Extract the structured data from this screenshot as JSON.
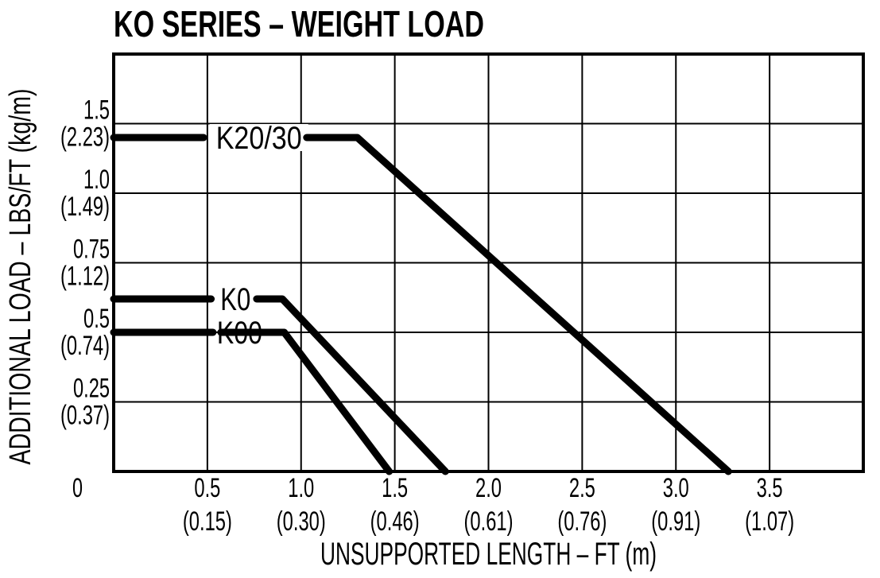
{
  "header": {
    "title": "KO SERIES – WEIGHT LOAD"
  },
  "colors": {
    "ink": "#000000",
    "background": "#ffffff"
  },
  "chart_data": {
    "type": "line",
    "title": "KO SERIES – WEIGHT LOAD",
    "xlabel": "UNSUPPORTED LENGTH – FT (m)",
    "ylabel": "ADDITIONAL LOAD – LBS/FT (kg/m)",
    "xlim": [
      0,
      4
    ],
    "x_gridline_step_ft": 0.5,
    "grid": true,
    "legend_position": "inline-labels-on-lines",
    "y_axis_note": "gridlines evenly spaced at the labeled values (non-linear value axis); metric equivalents in parentheses",
    "origin_label": "0",
    "x_ticks": [
      {
        "ft": "0.5",
        "m": "(0.15)",
        "value": 0.5
      },
      {
        "ft": "1.0",
        "m": "(0.30)",
        "value": 1.0
      },
      {
        "ft": "1.5",
        "m": "(0.46)",
        "value": 1.5
      },
      {
        "ft": "2.0",
        "m": "(0.61)",
        "value": 2.0
      },
      {
        "ft": "2.5",
        "m": "(0.76)",
        "value": 2.5
      },
      {
        "ft": "3.0",
        "m": "(0.91)",
        "value": 3.0
      },
      {
        "ft": "3.5",
        "m": "(1.07)",
        "value": 3.5
      }
    ],
    "y_ticks": [
      {
        "lbs_ft": "1.5",
        "kg_m": "(2.23)",
        "value": 1.5
      },
      {
        "lbs_ft": "1.0",
        "kg_m": "(1.49)",
        "value": 1.0
      },
      {
        "lbs_ft": "0.75",
        "kg_m": "(1.12)",
        "value": 0.75
      },
      {
        "lbs_ft": "0.5",
        "kg_m": "(0.74)",
        "value": 0.5
      },
      {
        "lbs_ft": "0.25",
        "kg_m": "(0.37)",
        "value": 0.25
      }
    ],
    "series": [
      {
        "name": "K20/30",
        "points_ft_lbs": [
          [
            0,
            1.4
          ],
          [
            1.3,
            1.4
          ],
          [
            3.28,
            0
          ]
        ],
        "segments": [
          [
            [
              0,
              1.4
            ],
            [
              0.48,
              1.4
            ]
          ],
          [
            [
              1.03,
              1.4
            ],
            [
              1.3,
              1.4
            ],
            [
              3.28,
              0
            ]
          ]
        ],
        "label_x_ft": 0.775,
        "label_bg": true
      },
      {
        "name": "K0",
        "points_ft_lbs": [
          [
            0,
            0.62
          ],
          [
            0.9,
            0.62
          ],
          [
            1.77,
            0
          ]
        ],
        "segments": [
          [
            [
              0,
              0.62
            ],
            [
              0.52,
              0.62
            ]
          ],
          [
            [
              0.763,
              0.62
            ],
            [
              0.9,
              0.62
            ],
            [
              1.77,
              0
            ]
          ]
        ],
        "label_x_ft": 0.65,
        "label_bg": false
      },
      {
        "name": "K00",
        "points_ft_lbs": [
          [
            0,
            0.5
          ],
          [
            0.91,
            0.5
          ],
          [
            1.47,
            0
          ]
        ],
        "segments": [
          [
            [
              0,
              0.5
            ],
            [
              0.53,
              0.5
            ]
          ],
          [
            [
              0.572,
              0.5
            ],
            [
              0.91,
              0.5
            ],
            [
              1.47,
              0
            ]
          ]
        ],
        "label_x_ft": 0.672,
        "label_bg": false
      }
    ],
    "line_color": "#000000"
  }
}
